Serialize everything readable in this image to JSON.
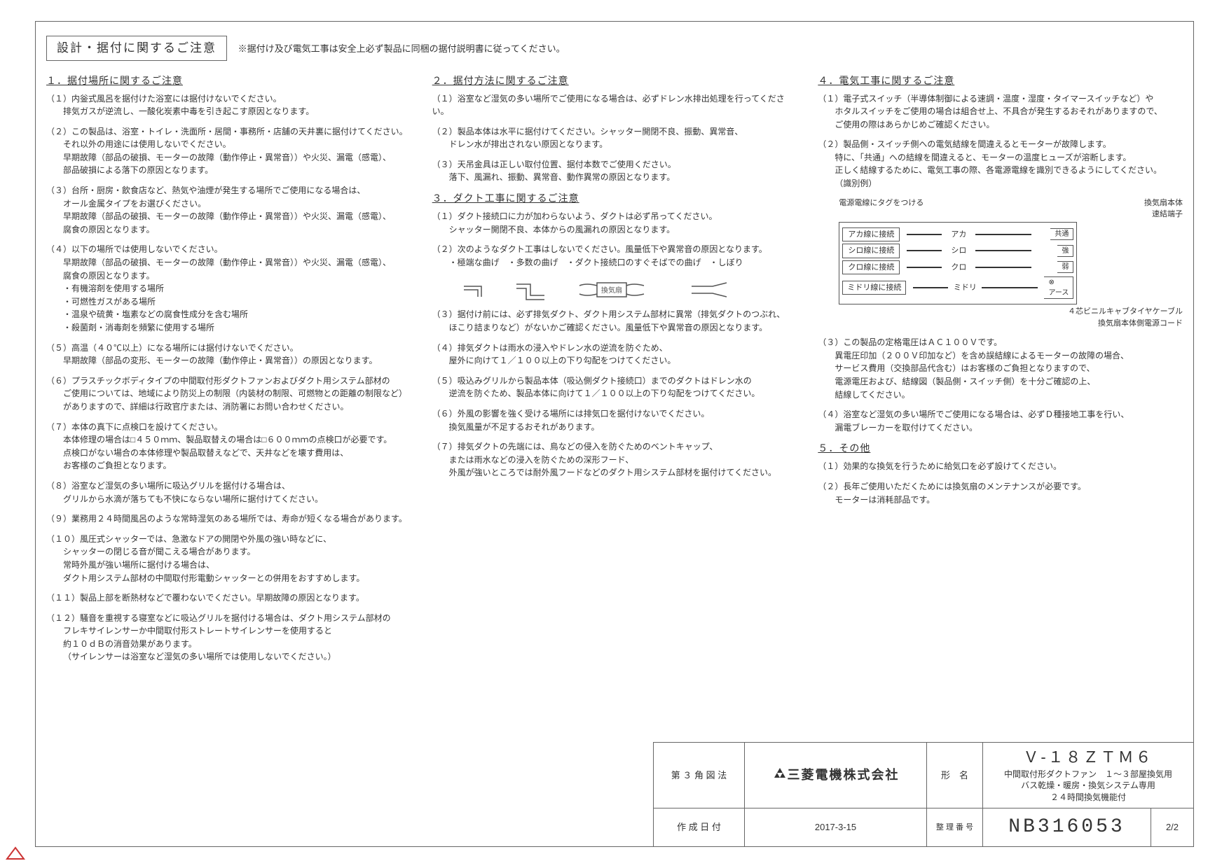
{
  "header": {
    "title_box": "設計・据付に関するご注意",
    "note": "※据付け及び電気工事は安全上必ず製品に同梱の据付説明書に従ってください。"
  },
  "sections": {
    "s1": {
      "title": "１．据付場所に関するご注意",
      "items": [
        {
          "n": "（１）",
          "t": "内釡式風呂を据付けた浴室には据付けないでください。",
          "b": "排気ガスが逆流し、一酸化炭素中毒を引き起こす原因となります。"
        },
        {
          "n": "（２）",
          "t": "この製品は、浴室・トイレ・洗面所・居間・事務所・店舗の天井裏に据付けてください。",
          "b": "それ以外の用途には使用しないでください。\n早期故障（部品の破損、モーターの故障（動作停止・異常音））や火災、漏電（感電）、\n部品破損による落下の原因となります。"
        },
        {
          "n": "（３）",
          "t": "台所・厨房・飲食店など、熱気や油煙が発生する場所でご使用になる場合は、",
          "b": "オール金属タイプをお選びください。\n早期故障（部品の破損、モーターの故障（動作停止・異常音））や火災、漏電（感電）、\n腐食の原因となります。"
        },
        {
          "n": "（４）",
          "t": "以下の場所では使用しないでください。",
          "b": "早期故障（部品の破損、モーターの故障（動作停止・異常音））や火災、漏電（感電）、\n腐食の原因となります。\n・有機溶剤を使用する場所\n・可燃性ガスがある場所\n・温泉や硫黄・塩素などの腐食性成分を含む場所\n・殺菌剤・消毒剤を頻繁に使用する場所"
        },
        {
          "n": "（５）",
          "t": "高温（４０℃以上）になる場所には据付けないでください。",
          "b": "早期故障（部品の変形、モーターの故障（動作停止・異常音））の原因となります。"
        },
        {
          "n": "（６）",
          "t": "プラスチックボディタイプの中間取付形ダクトファンおよびダクト用システム部材の",
          "b": "ご使用については、地域により防災上の制限（内装材の制限、可燃物との距離の制限など）\nがありますので、詳細は行政官庁または、消防署にお問い合わせください。"
        },
        {
          "n": "（７）",
          "t": "本体の真下に点検口を設けてください。",
          "b": "本体修理の場合は□４５０ｍｍ、製品取替えの場合は□６００ｍｍの点検口が必要です。\n点検口がない場合の本体修理や製品取替えなどで、天井などを壊す費用は、\nお客様のご負担となります。"
        },
        {
          "n": "（８）",
          "t": "浴室など湿気の多い場所に吸込グリルを据付ける場合は、",
          "b": "グリルから水滴が落ちても不快にならない場所に据付けてください。"
        },
        {
          "n": "（９）",
          "t": "業務用２４時間風呂のような常時湿気のある場所では、寿命が短くなる場合があります。",
          "b": ""
        },
        {
          "n": "（１０）",
          "t": "風圧式シャッターでは、急激なドアの開閉や外風の強い時などに、",
          "b": "シャッターの閉じる音が聞こえる場合があります。\n常時外風が強い場所に据付ける場合は、\nダクト用システム部材の中間取付形電動シャッターとの併用をおすすめします。"
        },
        {
          "n": "（１１）",
          "t": "製品上部を断熱材などで覆わないでください。早期故障の原因となります。",
          "b": ""
        },
        {
          "n": "（１２）",
          "t": "騒音を重視する寝室などに吸込グリルを据付ける場合は、ダクト用システム部材の",
          "b": "フレキサイレンサーか中間取付形ストレートサイレンサーを使用すると\n約１０ｄＢの消音効果があります。\n（サイレンサーは浴室など湿気の多い場所では使用しないでください。）"
        }
      ]
    },
    "s2": {
      "title": "２．据付方法に関するご注意",
      "items": [
        {
          "n": "（１）",
          "t": "浴室など湿気の多い場所でご使用になる場合は、必ずドレン水排出処理を行ってください。",
          "b": ""
        },
        {
          "n": "（２）",
          "t": "製品本体は水平に据付けてください。シャッター開閉不良、振動、異常音、",
          "b": "ドレン水が排出されない原因となります。"
        },
        {
          "n": "（３）",
          "t": "天吊金具は正しい取付位置、据付本数でご使用ください。",
          "b": "落下、風漏れ、振動、異常音、動作異常の原因となります。"
        }
      ]
    },
    "s3": {
      "title": "３．ダクト工事に関するご注意",
      "items": [
        {
          "n": "（１）",
          "t": "ダクト接続口に力が加わらないよう、ダクトは必ず吊ってください。",
          "b": "シャッター開閉不良、本体からの風漏れの原因となります。"
        },
        {
          "n": "（２）",
          "t": "次のようなダクト工事はしないでください。風量低下や異常音の原因となります。",
          "b": "・極端な曲げ　・多数の曲げ　・ダクト接続口のすぐそばでの曲げ　・しぼり"
        },
        {
          "n": "（３）",
          "t": "据付け前には、必ず排気ダクト、ダクト用システム部材に異常（排気ダクトのつぶれ、",
          "b": "ほこり詰まりなど）がないかご確認ください。風量低下や異常音の原因となります。"
        },
        {
          "n": "（４）",
          "t": "排気ダクトは雨水の浸入やドレン水の逆流を防ぐため、",
          "b": "屋外に向けて１／１００以上の下り勾配をつけてください。"
        },
        {
          "n": "（５）",
          "t": "吸込みグリルから製品本体（吸込側ダクト接続口）までのダクトはドレン水の",
          "b": "逆流を防ぐため、製品本体に向けて１／１００以上の下り勾配をつけてください。"
        },
        {
          "n": "（６）",
          "t": "外風の影響を強く受ける場所には排気口を据付けないでください。",
          "b": "換気風量が不足するおそれがあります。"
        },
        {
          "n": "（７）",
          "t": "排気ダクトの先端には、鳥などの侵入を防ぐためのベントキャップ、",
          "b": "または雨水などの浸入を防ぐための深形フード、\n外風が強いところでは耐外風フードなどのダクト用システム部材を据付けてください。"
        }
      ],
      "diagram_label": "換気扇"
    },
    "s4": {
      "title": "４．電気工事に関するご注意",
      "items": [
        {
          "n": "（１）",
          "t": "電子式スイッチ（半導体制御による速調・温度・湿度・タイマースイッチなど）や",
          "b": "ホタルスイッチをご使用の場合は組合せ上、不具合が発生するおそれがありますので、\nご使用の際はあらかじめご確認ください。"
        },
        {
          "n": "（２）",
          "t": "製品側・スイッチ側への電気結線を間違えるとモーターが故障します。",
          "b": "特に、「共通」への結線を間違えると、モーターの温度ヒューズが溶断します。\n正しく結線するために、電気工事の際、各電源電線を識別できるようにしてください。\n（識別例）"
        },
        {
          "n": "（３）",
          "t": "この製品の定格電圧はＡＣ１００Ｖです。",
          "b": "異電圧印加（２００Ｖ印加など）を含め誤結線によるモーターの故障の場合、\nサービス費用（交換部品代含む）はお客様のご負担となりますので、\n電源電圧および、結線図（製品側・スイッチ側）を十分ご確認の上、\n結線してください。"
        },
        {
          "n": "（４）",
          "t": "浴室など湿気の多い場所でご使用になる場合は、必ずＤ種接地工事を行い、",
          "b": "漏電ブレーカーを取付けてください。"
        }
      ],
      "wiring": {
        "header_left": "電源電線にタグをつける",
        "header_right_top": "換気扇本体",
        "header_right_bot": "速結端子",
        "rows": [
          {
            "box": "アカ線に接続",
            "mid": "アカ",
            "term": "共通"
          },
          {
            "box": "シロ線に接続",
            "mid": "シロ",
            "term": "強"
          },
          {
            "box": "クロ線に接続",
            "mid": "クロ",
            "term": "弱"
          },
          {
            "box": "ミドリ線に接続",
            "mid": "ミドリ",
            "term": "⊗\nアース"
          }
        ],
        "footer1": "４芯ビニルキャブタイヤケーブル",
        "footer2": "換気扇本体側電源コード"
      }
    },
    "s5": {
      "title": "５．その他",
      "items": [
        {
          "n": "（１）",
          "t": "効果的な換気を行うために給気口を必ず設けてください。",
          "b": ""
        },
        {
          "n": "（２）",
          "t": "長年ご使用いただくためには換気扇のメンテナンスが必要です。",
          "b": "モーターは消耗部品です。"
        }
      ]
    }
  },
  "titleblock": {
    "proj_label": "第 ３ 角 図 法",
    "company": "三菱電機株式会社",
    "form_label": "形　名",
    "model": "Ｖ‐１８ＺＴＭ６",
    "model_sub1": "中間取付形ダクトファン　１～３部屋換気用",
    "model_sub2": "バス乾燥・暖房・換気システム専用",
    "model_sub3": "２４時間換気機能付",
    "date_label": "作 成 日 付",
    "date": "2017-3-15",
    "num_label": "整 理 番 号",
    "num": "NB316053",
    "page": "2/2"
  }
}
